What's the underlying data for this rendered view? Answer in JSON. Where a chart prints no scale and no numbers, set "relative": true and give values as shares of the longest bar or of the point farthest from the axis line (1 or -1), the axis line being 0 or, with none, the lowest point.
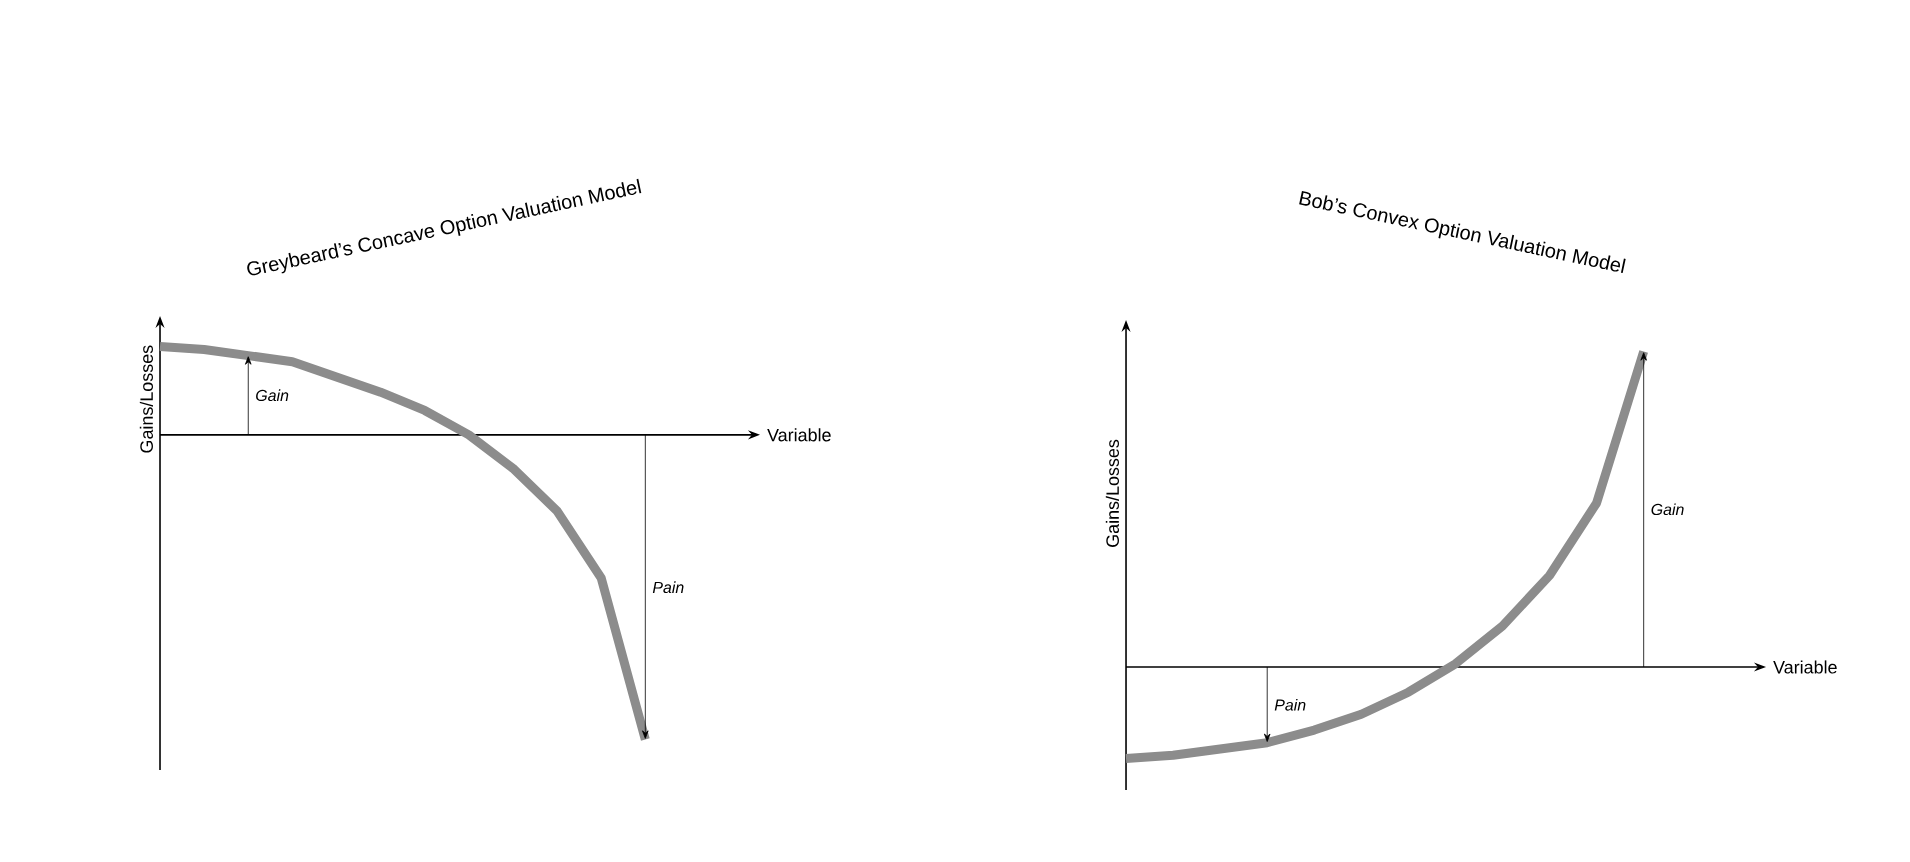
{
  "chart_data": [
    {
      "type": "line",
      "title": "Greybeard’s Concave Option Valuation Model",
      "xlabel": "Variable",
      "ylabel": "Gains/Losses",
      "relative": true,
      "categories": [
        null,
        null,
        null,
        null,
        null,
        null,
        null,
        null,
        null,
        null,
        null,
        null
      ],
      "series": [
        {
          "color": "#8c8c8c",
          "values": [
            0.29,
            0.28,
            0.26,
            0.24,
            0.19,
            0.14,
            0.08,
            0.0,
            -0.11,
            -0.25,
            -0.47,
            -1.0
          ]
        }
      ],
      "annotations": [
        "Gain",
        "Pain"
      ]
    },
    {
      "type": "line",
      "title": "Bob’s Convex Option Valuation Model",
      "xlabel": "Variable",
      "ylabel": "Gains/Losses",
      "relative": true,
      "categories": [
        null,
        null,
        null,
        null,
        null,
        null,
        null,
        null,
        null,
        null,
        null,
        null
      ],
      "series": [
        {
          "color": "#8c8c8c",
          "values": [
            -0.29,
            -0.28,
            -0.26,
            -0.24,
            -0.2,
            -0.15,
            -0.08,
            0.01,
            0.13,
            0.29,
            0.52,
            1.0
          ]
        }
      ],
      "annotations": [
        "Pain",
        "Gain"
      ]
    }
  ]
}
